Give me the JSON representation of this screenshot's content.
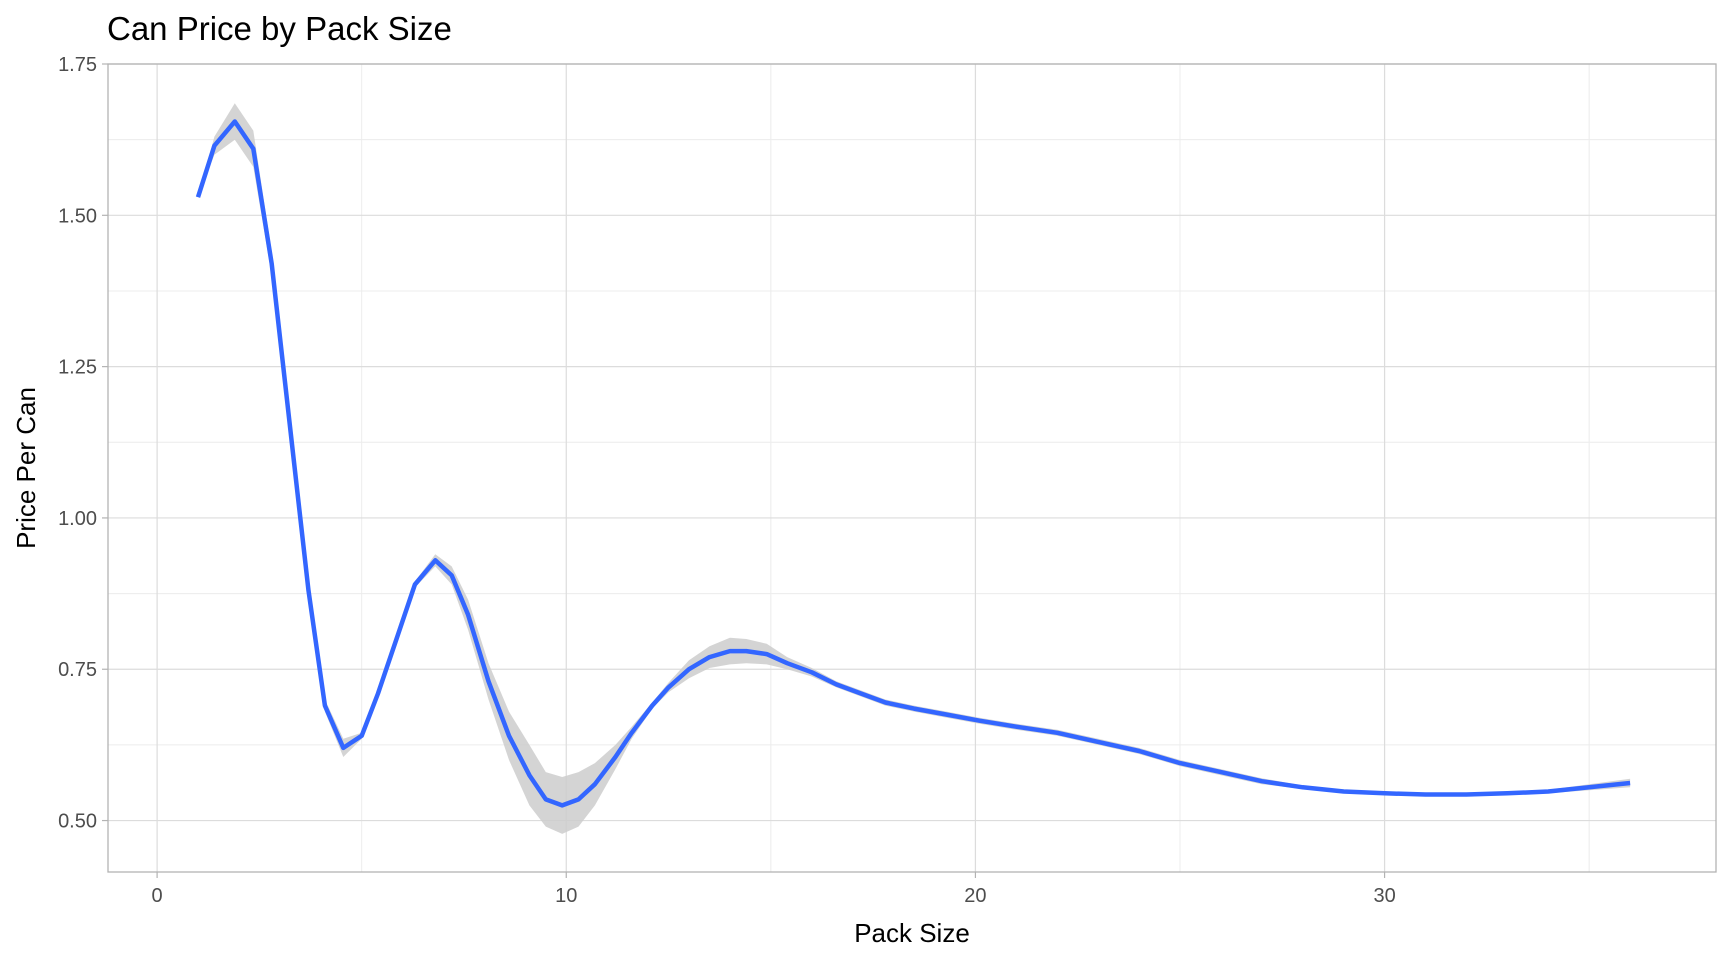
{
  "chart_data": {
    "type": "line",
    "title": "Can Price by Pack Size",
    "xlabel": "Pack Size",
    "ylabel": "Price Per Can",
    "xlim": [
      -1.2,
      38.1
    ],
    "ylim": [
      0.415,
      1.75
    ],
    "x_ticks": [
      0,
      10,
      20,
      30
    ],
    "x_tick_labels": [
      "0",
      "10",
      "20",
      "30"
    ],
    "y_ticks": [
      0.5,
      0.75,
      1.0,
      1.25,
      1.5,
      1.75
    ],
    "y_tick_labels": [
      "0.50",
      "0.75",
      "1.00",
      "1.25",
      "1.50",
      "1.75"
    ],
    "grid": true,
    "line_color": "#3366ff",
    "ribbon_color": "#cccccc",
    "series": [
      {
        "x": [
          1.0,
          1.4,
          1.9,
          2.35,
          2.8,
          3.3,
          3.7,
          4.1,
          4.55,
          5.0,
          5.4,
          5.85,
          6.3,
          6.8,
          7.2,
          7.6,
          8.1,
          8.6,
          9.1,
          9.5,
          9.9,
          10.3,
          10.7,
          11.2,
          11.6,
          12.1,
          12.5,
          13.0,
          13.5,
          14.0,
          14.4,
          14.9,
          15.4,
          16.0,
          16.6,
          17.2,
          17.8,
          18.5,
          19.3,
          20.1,
          21.0,
          22.0,
          23.0,
          24.0,
          25.0,
          26.0,
          27.0,
          28.0,
          29.0,
          30.0,
          31.0,
          32.0,
          33.0,
          34.0,
          35.0,
          36.0
        ],
        "y": [
          1.53,
          1.615,
          1.655,
          1.61,
          1.42,
          1.12,
          0.88,
          0.69,
          0.62,
          0.64,
          0.71,
          0.8,
          0.89,
          0.93,
          0.905,
          0.84,
          0.73,
          0.64,
          0.575,
          0.535,
          0.525,
          0.535,
          0.56,
          0.605,
          0.645,
          0.69,
          0.72,
          0.75,
          0.77,
          0.78,
          0.78,
          0.775,
          0.76,
          0.745,
          0.725,
          0.71,
          0.695,
          0.685,
          0.675,
          0.665,
          0.655,
          0.645,
          0.63,
          0.615,
          0.595,
          0.58,
          0.565,
          0.555,
          0.548,
          0.545,
          0.543,
          0.543,
          0.545,
          0.548,
          0.555,
          0.562
        ],
        "lower": [
          1.53,
          1.6,
          1.625,
          1.58,
          1.4,
          1.11,
          0.875,
          0.68,
          0.605,
          0.635,
          0.705,
          0.795,
          0.885,
          0.92,
          0.89,
          0.815,
          0.7,
          0.6,
          0.525,
          0.49,
          0.478,
          0.49,
          0.525,
          0.585,
          0.635,
          0.685,
          0.712,
          0.735,
          0.752,
          0.758,
          0.76,
          0.758,
          0.75,
          0.738,
          0.72,
          0.705,
          0.69,
          0.68,
          0.67,
          0.66,
          0.65,
          0.64,
          0.625,
          0.61,
          0.59,
          0.575,
          0.56,
          0.552,
          0.545,
          0.542,
          0.54,
          0.54,
          0.542,
          0.545,
          0.55,
          0.555
        ],
        "upper": [
          1.53,
          1.63,
          1.685,
          1.64,
          1.44,
          1.13,
          0.885,
          0.7,
          0.635,
          0.645,
          0.715,
          0.805,
          0.895,
          0.94,
          0.92,
          0.865,
          0.76,
          0.68,
          0.625,
          0.58,
          0.572,
          0.58,
          0.595,
          0.625,
          0.655,
          0.695,
          0.728,
          0.765,
          0.788,
          0.802,
          0.8,
          0.792,
          0.77,
          0.752,
          0.73,
          0.715,
          0.7,
          0.69,
          0.68,
          0.67,
          0.66,
          0.65,
          0.635,
          0.62,
          0.6,
          0.585,
          0.57,
          0.558,
          0.551,
          0.548,
          0.546,
          0.546,
          0.548,
          0.551,
          0.56,
          0.569
        ]
      }
    ]
  }
}
